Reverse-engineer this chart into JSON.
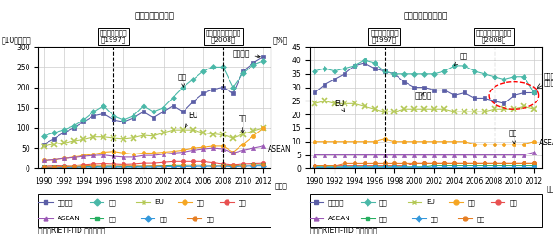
{
  "years": [
    1990,
    1991,
    1992,
    1993,
    1994,
    1995,
    1996,
    1997,
    1998,
    1999,
    2000,
    2001,
    2002,
    2003,
    2004,
    2005,
    2006,
    2007,
    2008,
    2009,
    2010,
    2011,
    2012
  ],
  "left_title": "（消費財／金額）",
  "right_title": "（消費財／シェア）",
  "ylabel_left": "（10億ドル）",
  "ylabel_right": "（%）",
  "xlabel": "（年）",
  "crisis1_label": "アジア通貨危機\n（1997）",
  "crisis2_label": "リーマン・ショック\n（2008）",
  "crisis1_year": 1997,
  "crisis2_year": 2008,
  "source": "資料：RIETI-TID から作成。",
  "series": {
    "東アジア": {
      "color": "#5b5ea6",
      "marker": "s",
      "left_values": [
        60,
        73,
        88,
        100,
        115,
        130,
        135,
        120,
        115,
        125,
        140,
        125,
        140,
        155,
        140,
        165,
        185,
        195,
        200,
        185,
        240,
        260,
        275
      ],
      "right_values": [
        28,
        31,
        33,
        35,
        38,
        39,
        37,
        36,
        35,
        32,
        30,
        30,
        29,
        29,
        27,
        28,
        26,
        26,
        25,
        24,
        27,
        28,
        28
      ]
    },
    "米国": {
      "color": "#4ab8a8",
      "marker": "D",
      "left_values": [
        80,
        88,
        95,
        105,
        120,
        140,
        155,
        130,
        120,
        130,
        155,
        140,
        150,
        175,
        200,
        220,
        240,
        250,
        250,
        200,
        235,
        255,
        265
      ],
      "right_values": [
        36,
        37,
        36,
        37,
        38,
        40,
        39,
        36,
        35,
        35,
        35,
        35,
        35,
        36,
        38,
        38,
        36,
        35,
        34,
        33,
        34,
        34,
        28
      ]
    },
    "EU": {
      "color": "#b5c957",
      "marker": "x",
      "left_values": [
        55,
        60,
        63,
        68,
        72,
        78,
        78,
        75,
        73,
        76,
        82,
        80,
        88,
        95,
        95,
        95,
        88,
        85,
        83,
        75,
        85,
        93,
        100
      ],
      "right_values": [
        24,
        25,
        24,
        24,
        24,
        23,
        22,
        21,
        21,
        22,
        22,
        22,
        22,
        22,
        21,
        21,
        21,
        21,
        22,
        22,
        22,
        23,
        22
      ]
    },
    "日本": {
      "color": "#f5a623",
      "marker": "o",
      "left_values": [
        20,
        22,
        25,
        28,
        32,
        35,
        40,
        42,
        38,
        35,
        38,
        38,
        40,
        42,
        45,
        50,
        52,
        55,
        55,
        40,
        60,
        80,
        100
      ],
      "right_values": [
        10,
        10,
        10,
        10,
        10,
        10,
        10,
        11,
        10,
        10,
        10,
        10,
        10,
        10,
        10,
        10,
        9,
        9,
        9,
        9,
        9,
        9,
        10
      ]
    },
    "中国": {
      "color": "#e85050",
      "marker": "o",
      "left_values": [
        5,
        6,
        7,
        8,
        10,
        12,
        13,
        12,
        11,
        12,
        14,
        14,
        16,
        18,
        18,
        18,
        18,
        15,
        12,
        10,
        12,
        13,
        14
      ],
      "right_values": [
        1,
        1,
        1,
        1,
        1,
        1,
        1,
        1,
        1,
        1,
        2,
        2,
        2,
        2,
        2,
        2,
        2,
        2,
        2,
        2,
        2,
        2,
        2
      ]
    },
    "ASEAN": {
      "color": "#9b59b6",
      "marker": "^",
      "left_values": [
        20,
        22,
        25,
        27,
        30,
        32,
        33,
        30,
        28,
        28,
        32,
        32,
        35,
        38,
        40,
        45,
        48,
        50,
        48,
        38,
        45,
        50,
        55
      ],
      "right_values": [
        5,
        5,
        5,
        5,
        5,
        5,
        5,
        5,
        5,
        5,
        5,
        5,
        5,
        5,
        5,
        5,
        5,
        5,
        5,
        5,
        5,
        5,
        6
      ]
    },
    "韓国": {
      "color": "#27ae60",
      "marker": "s",
      "left_values": [
        2,
        2,
        3,
        3,
        4,
        4,
        5,
        5,
        4,
        4,
        5,
        5,
        6,
        7,
        7,
        8,
        8,
        8,
        8,
        6,
        8,
        9,
        10
      ],
      "right_values": [
        0.5,
        0.5,
        0.5,
        0.5,
        0.5,
        0.5,
        0.5,
        0.5,
        0.5,
        0.5,
        0.5,
        0.5,
        1,
        1,
        1,
        1,
        1,
        1,
        1,
        1,
        1,
        1,
        1
      ]
    },
    "台湾": {
      "color": "#3498db",
      "marker": "D",
      "left_values": [
        2,
        2,
        2,
        3,
        3,
        3,
        3,
        3,
        3,
        3,
        3,
        3,
        4,
        4,
        4,
        5,
        5,
        5,
        5,
        4,
        5,
        6,
        6
      ],
      "right_values": [
        0.5,
        0.5,
        0.5,
        0.5,
        0.5,
        0.5,
        0.5,
        0.5,
        0.5,
        0.5,
        0.5,
        0.5,
        0.5,
        0.5,
        0.5,
        0.5,
        0.5,
        0.5,
        0.5,
        0.5,
        0.5,
        0.5,
        0.5
      ]
    },
    "香港": {
      "color": "#e67e22",
      "marker": "o",
      "left_values": [
        3,
        3,
        4,
        5,
        6,
        7,
        8,
        8,
        7,
        7,
        8,
        7,
        8,
        9,
        9,
        9,
        9,
        8,
        8,
        7,
        8,
        9,
        9
      ],
      "right_values": [
        1,
        1,
        1,
        2,
        2,
        2,
        2,
        2,
        2,
        2,
        2,
        2,
        2,
        2,
        2,
        2,
        2,
        2,
        2,
        2,
        2,
        2,
        2
      ]
    }
  },
  "left_ylim": [
    0,
    300
  ],
  "left_yticks": [
    0,
    50,
    100,
    150,
    200,
    250,
    300
  ],
  "right_ylim": [
    0,
    45
  ],
  "right_yticks": [
    0,
    5,
    10,
    15,
    20,
    25,
    30,
    35,
    40,
    45
  ],
  "xticks": [
    1990,
    1992,
    1994,
    1996,
    1998,
    2000,
    2002,
    2004,
    2006,
    2008,
    2010,
    2012
  ],
  "legend_order": [
    "東アジア",
    "米国",
    "EU",
    "日本",
    "中国",
    "ASEAN",
    "韓国",
    "台湾",
    "香港"
  ]
}
